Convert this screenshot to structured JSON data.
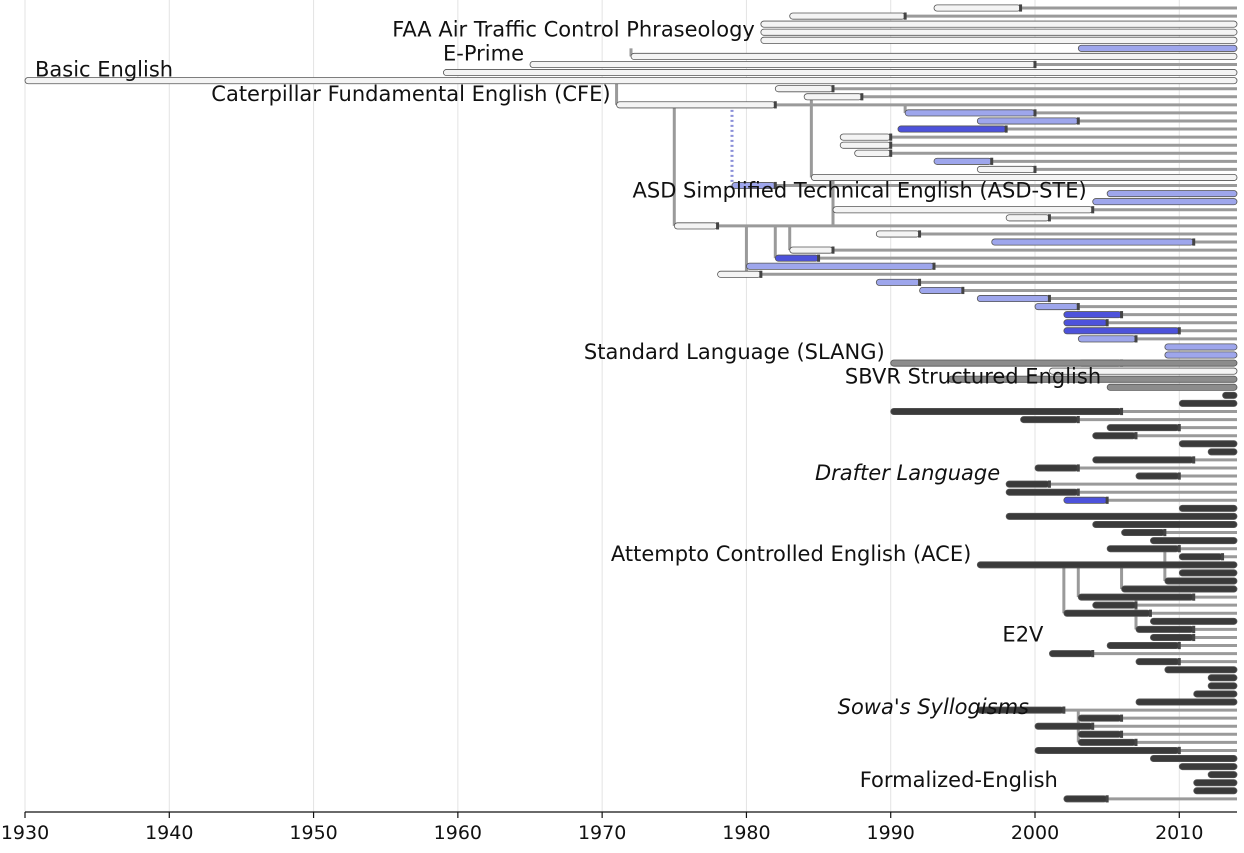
{
  "chart_data": {
    "type": "timeline",
    "x_axis": {
      "range": [
        1930,
        2014
      ],
      "ticks": [
        1930,
        1940,
        1950,
        1960,
        1970,
        1980,
        1990,
        2000,
        2010
      ],
      "grid": true
    },
    "colors": {
      "white": "#f4f4f4",
      "lightblue": "#9ea6ec",
      "blue": "#4d52db",
      "gray": "#8c8c8c",
      "dark": "#3a3a3a",
      "line": "#9a9a9a",
      "grid": "#e3e3e3",
      "outline": "#555555"
    },
    "labels": [
      {
        "text": "FAA Air Traffic Control Phraseology",
        "year": 1981,
        "row": 4,
        "italic": false
      },
      {
        "text": "E-Prime",
        "year": 1965,
        "row": 7,
        "italic": false
      },
      {
        "text": "Basic English",
        "year": 1930,
        "row": 9,
        "italic": false
      },
      {
        "text": "Caterpillar Fundamental English (CFE)",
        "year": 1971,
        "row": 12,
        "italic": false
      },
      {
        "text": "ASD Simplified Technical English (ASD-STE)",
        "year": 2004,
        "row": 24,
        "italic": false
      },
      {
        "text": "Standard Language (SLANG)",
        "year": 1990,
        "row": 44,
        "italic": false
      },
      {
        "text": "SBVR Structured English",
        "year": 2005,
        "row": 47,
        "italic": false
      },
      {
        "text": "Drafter Language",
        "year": 1998,
        "row": 59,
        "italic": true
      },
      {
        "text": "Attempto Controlled English (ACE)",
        "year": 1996,
        "row": 69,
        "italic": false
      },
      {
        "text": "E2V",
        "year": 2001,
        "row": 79,
        "italic": false
      },
      {
        "text": "Sowa's Syllogisms",
        "year": 2000,
        "row": 88,
        "italic": true
      },
      {
        "text": "Formalized-English",
        "year": 2002,
        "row": 97,
        "italic": false
      }
    ],
    "languages": [
      {
        "row": 0,
        "start": 1993,
        "end": 1999,
        "color": "white"
      },
      {
        "row": 1,
        "start": 1983,
        "end": 1991,
        "color": "white"
      },
      {
        "row": 2,
        "start": 1981,
        "end": 2014,
        "color": "white"
      },
      {
        "row": 3,
        "start": 1981,
        "end": 2014,
        "color": "white"
      },
      {
        "row": 4,
        "start": 1981,
        "end": 2014,
        "color": "white"
      },
      {
        "row": 5,
        "start": 2003,
        "end": 2014,
        "color": "lightblue"
      },
      {
        "row": 6,
        "start": 1972,
        "end": 2014,
        "color": "white"
      },
      {
        "row": 7,
        "start": 1965,
        "end": 2000,
        "color": "white"
      },
      {
        "row": 8,
        "start": 1959,
        "end": 2014,
        "color": "white"
      },
      {
        "row": 9,
        "start": 1930,
        "end": 2014,
        "color": "white"
      },
      {
        "row": 10,
        "start": 1982,
        "end": 1986,
        "color": "white"
      },
      {
        "row": 11,
        "start": 1984,
        "end": 1988,
        "color": "white"
      },
      {
        "row": 12,
        "start": 1971,
        "end": 1982,
        "color": "white"
      },
      {
        "row": 13,
        "start": 1991,
        "end": 2000,
        "color": "lightblue"
      },
      {
        "row": 14,
        "start": 1996,
        "end": 2003,
        "color": "lightblue"
      },
      {
        "row": 15,
        "start": 1990.5,
        "end": 1998,
        "color": "blue"
      },
      {
        "row": 16,
        "start": 1986.5,
        "end": 1990,
        "color": "white"
      },
      {
        "row": 17,
        "start": 1986.5,
        "end": 1990,
        "color": "white"
      },
      {
        "row": 18,
        "start": 1987.5,
        "end": 1990,
        "color": "white"
      },
      {
        "row": 19,
        "start": 1993,
        "end": 1997,
        "color": "lightblue"
      },
      {
        "row": 20,
        "start": 1996,
        "end": 2000,
        "color": "white"
      },
      {
        "row": 21,
        "start": 1984.5,
        "end": 2014,
        "color": "white"
      },
      {
        "row": 22,
        "start": 1979,
        "end": 1982,
        "color": "lightblue"
      },
      {
        "row": 23,
        "start": 2005,
        "end": 2014,
        "color": "lightblue"
      },
      {
        "row": 24,
        "start": 2004,
        "end": 2014,
        "color": "lightblue"
      },
      {
        "row": 25,
        "start": 1986,
        "end": 2004,
        "color": "white"
      },
      {
        "row": 26,
        "start": 1998,
        "end": 2001,
        "color": "white"
      },
      {
        "row": 27,
        "start": 1975,
        "end": 1978,
        "color": "white"
      },
      {
        "row": 28,
        "start": 1989,
        "end": 1992,
        "color": "white"
      },
      {
        "row": 29,
        "start": 1997,
        "end": 2011,
        "color": "lightblue"
      },
      {
        "row": 30,
        "start": 1983,
        "end": 1986,
        "color": "white"
      },
      {
        "row": 31,
        "start": 1982,
        "end": 1985,
        "color": "blue"
      },
      {
        "row": 32,
        "start": 1980,
        "end": 1993,
        "color": "lightblue"
      },
      {
        "row": 33,
        "start": 1978,
        "end": 1981,
        "color": "white"
      },
      {
        "row": 34,
        "start": 1989,
        "end": 1992,
        "color": "lightblue"
      },
      {
        "row": 35,
        "start": 1992,
        "end": 1995,
        "color": "lightblue"
      },
      {
        "row": 36,
        "start": 1996,
        "end": 2001,
        "color": "lightblue"
      },
      {
        "row": 37,
        "start": 2000,
        "end": 2003,
        "color": "lightblue"
      },
      {
        "row": 38,
        "start": 2002,
        "end": 2006,
        "color": "blue"
      },
      {
        "row": 39,
        "start": 2002,
        "end": 2005,
        "color": "blue"
      },
      {
        "row": 40,
        "start": 2002,
        "end": 2010,
        "color": "blue"
      },
      {
        "row": 41,
        "start": 2003,
        "end": 2007,
        "color": "lightblue"
      },
      {
        "row": 42,
        "start": 2009,
        "end": 2014,
        "color": "lightblue"
      },
      {
        "row": 43,
        "start": 2009,
        "end": 2014,
        "color": "lightblue"
      },
      {
        "row": 44,
        "start": 2003,
        "end": 2006,
        "color": "white"
      },
      {
        "row": 44,
        "start": 1990,
        "end": 2014,
        "color": "gray"
      },
      {
        "row": 45,
        "start": 2001,
        "end": 2014,
        "color": "white"
      },
      {
        "row": 46,
        "start": 1994,
        "end": 2014,
        "color": "gray"
      },
      {
        "row": 47,
        "start": 2005,
        "end": 2014,
        "color": "gray"
      },
      {
        "row": 48,
        "start": 2013,
        "end": 2014,
        "color": "dark"
      },
      {
        "row": 49,
        "start": 2010,
        "end": 2014,
        "color": "dark"
      },
      {
        "row": 50,
        "start": 1990,
        "end": 2006,
        "color": "dark"
      },
      {
        "row": 51,
        "start": 1999,
        "end": 2003,
        "color": "dark"
      },
      {
        "row": 52,
        "start": 2005,
        "end": 2010,
        "color": "dark"
      },
      {
        "row": 53,
        "start": 2004,
        "end": 2007,
        "color": "dark"
      },
      {
        "row": 54,
        "start": 2010,
        "end": 2014,
        "color": "dark"
      },
      {
        "row": 55,
        "start": 2012,
        "end": 2014,
        "color": "dark"
      },
      {
        "row": 56,
        "start": 2004,
        "end": 2011,
        "color": "dark"
      },
      {
        "row": 57,
        "start": 2000,
        "end": 2003,
        "color": "dark"
      },
      {
        "row": 58,
        "start": 2007,
        "end": 2010,
        "color": "dark"
      },
      {
        "row": 59,
        "start": 1998,
        "end": 2001,
        "color": "dark"
      },
      {
        "row": 60,
        "start": 1998,
        "end": 2003,
        "color": "dark"
      },
      {
        "row": 61,
        "start": 2002,
        "end": 2005,
        "color": "blue"
      },
      {
        "row": 62,
        "start": 2010,
        "end": 2014,
        "color": "dark"
      },
      {
        "row": 63,
        "start": 1998,
        "end": 2014,
        "color": "dark"
      },
      {
        "row": 64,
        "start": 2004,
        "end": 2014,
        "color": "dark"
      },
      {
        "row": 65,
        "start": 2006,
        "end": 2009,
        "color": "dark"
      },
      {
        "row": 66,
        "start": 2008,
        "end": 2014,
        "color": "dark"
      },
      {
        "row": 67,
        "start": 2005,
        "end": 2010,
        "color": "dark"
      },
      {
        "row": 68,
        "start": 2010,
        "end": 2013,
        "color": "dark"
      },
      {
        "row": 69,
        "start": 1996,
        "end": 2014,
        "color": "dark"
      },
      {
        "row": 70,
        "start": 2010,
        "end": 2014,
        "color": "dark"
      },
      {
        "row": 71,
        "start": 2009,
        "end": 2014,
        "color": "dark"
      },
      {
        "row": 72,
        "start": 2006,
        "end": 2014,
        "color": "dark"
      },
      {
        "row": 73,
        "start": 2003,
        "end": 2011,
        "color": "dark"
      },
      {
        "row": 74,
        "start": 2004,
        "end": 2007,
        "color": "dark"
      },
      {
        "row": 75,
        "start": 2002,
        "end": 2008,
        "color": "dark"
      },
      {
        "row": 76,
        "start": 2008,
        "end": 2014,
        "color": "dark"
      },
      {
        "row": 77,
        "start": 2007,
        "end": 2011,
        "color": "dark"
      },
      {
        "row": 78,
        "start": 2008,
        "end": 2011,
        "color": "dark"
      },
      {
        "row": 79,
        "start": 2005,
        "end": 2010,
        "color": "dark"
      },
      {
        "row": 80,
        "start": 2001,
        "end": 2004,
        "color": "dark"
      },
      {
        "row": 81,
        "start": 2007,
        "end": 2010,
        "color": "dark"
      },
      {
        "row": 82,
        "start": 2009,
        "end": 2014,
        "color": "dark"
      },
      {
        "row": 83,
        "start": 2012,
        "end": 2014,
        "color": "dark"
      },
      {
        "row": 84,
        "start": 2012,
        "end": 2014,
        "color": "dark"
      },
      {
        "row": 85,
        "start": 2011,
        "end": 2014,
        "color": "dark"
      },
      {
        "row": 86,
        "start": 2007,
        "end": 2014,
        "color": "dark"
      },
      {
        "row": 87,
        "start": 1996,
        "end": 2002,
        "color": "dark"
      },
      {
        "row": 88,
        "start": 2003,
        "end": 2006,
        "color": "dark"
      },
      {
        "row": 89,
        "start": 2000,
        "end": 2004,
        "color": "dark"
      },
      {
        "row": 90,
        "start": 2003,
        "end": 2006,
        "color": "dark"
      },
      {
        "row": 91,
        "start": 2003,
        "end": 2007,
        "color": "dark"
      },
      {
        "row": 92,
        "start": 2000,
        "end": 2010,
        "color": "dark"
      },
      {
        "row": 93,
        "start": 2008,
        "end": 2014,
        "color": "dark"
      },
      {
        "row": 94,
        "start": 2010,
        "end": 2014,
        "color": "dark"
      },
      {
        "row": 95,
        "start": 2012,
        "end": 2014,
        "color": "dark"
      },
      {
        "row": 96,
        "start": 2011,
        "end": 2014,
        "color": "dark"
      },
      {
        "row": 97,
        "start": 2011,
        "end": 2014,
        "color": "dark"
      },
      {
        "row": 98,
        "start": 2002,
        "end": 2005,
        "color": "dark"
      }
    ],
    "influences": [
      {
        "year": 1971,
        "from_row": 9,
        "to_row": 12
      },
      {
        "year": 1975,
        "from_row": 12,
        "to_row": 27
      },
      {
        "year": 1979,
        "from_row": 12,
        "to_row": 22,
        "dotted": true
      },
      {
        "year": 1986,
        "from_row": 21,
        "to_row": 27
      },
      {
        "year": 1991,
        "from_row": 12,
        "to_row": 13
      },
      {
        "year": 1982,
        "from_row": 27,
        "to_row": 31
      },
      {
        "year": 1980,
        "from_row": 27,
        "to_row": 33
      },
      {
        "year": 1983,
        "from_row": 27,
        "to_row": 30
      },
      {
        "year": 1984.5,
        "from_row": 11,
        "to_row": 21
      },
      {
        "year": 1972,
        "from_row": 5,
        "to_row": 6
      },
      {
        "year": 2002,
        "from_row": 69,
        "to_row": 75
      },
      {
        "year": 2003,
        "from_row": 69,
        "to_row": 73
      },
      {
        "year": 2006,
        "from_row": 69,
        "to_row": 72
      },
      {
        "year": 2007,
        "from_row": 73,
        "to_row": 77
      },
      {
        "year": 2009,
        "from_row": 67,
        "to_row": 71
      },
      {
        "year": 2003,
        "from_row": 87,
        "to_row": 91
      }
    ]
  }
}
